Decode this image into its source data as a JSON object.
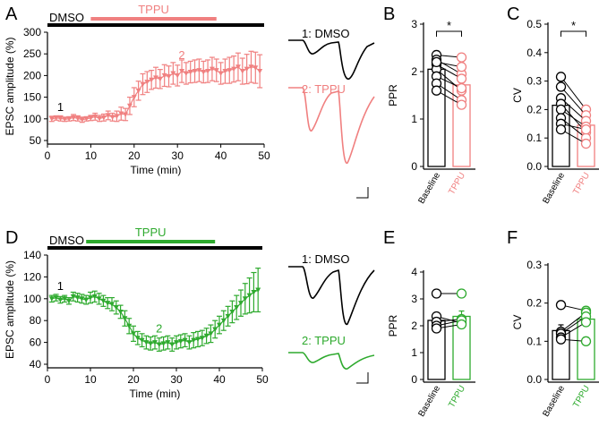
{
  "colors": {
    "tppu_a": "#F08080",
    "tppu_d": "#2EAA2E",
    "black": "#000000"
  },
  "chart_data": [
    {
      "panel": "A",
      "type": "line",
      "xlabel": "Time (min)",
      "ylabel": "EPSC amplitude (%)",
      "xlim": [
        0,
        50
      ],
      "ylim": [
        50,
        300
      ],
      "xticks": [
        "0",
        "10",
        "20",
        "30",
        "40",
        "50"
      ],
      "yticks": [
        "50",
        "100",
        "150",
        "200",
        "250",
        "300"
      ],
      "dmso_label": "DMSO",
      "drug_label": "TPPU",
      "dmso_bar": [
        0,
        50
      ],
      "drug_bar": [
        10,
        39
      ],
      "marker_1": "1",
      "marker_2": "2",
      "marker_1_at": [
        3,
        118
      ],
      "marker_2_at": [
        31,
        238
      ],
      "x": [
        1,
        2,
        3,
        4,
        5,
        6,
        7,
        8,
        9,
        10,
        11,
        12,
        13,
        14,
        15,
        16,
        17,
        18,
        19,
        20,
        21,
        22,
        23,
        24,
        25,
        26,
        27,
        28,
        29,
        30,
        31,
        32,
        33,
        34,
        35,
        36,
        37,
        38,
        39,
        40,
        41,
        42,
        43,
        44,
        45,
        46,
        47,
        48,
        49
      ],
      "y": [
        100,
        102,
        101,
        99,
        100,
        103,
        101,
        98,
        100,
        102,
        105,
        101,
        103,
        108,
        104,
        106,
        112,
        110,
        130,
        150,
        165,
        180,
        185,
        190,
        195,
        192,
        200,
        198,
        205,
        200,
        210,
        205,
        208,
        210,
        212,
        208,
        210,
        215,
        212,
        205,
        210,
        212,
        215,
        220,
        210,
        215,
        220,
        218,
        210
      ],
      "err": [
        6,
        5,
        6,
        5,
        5,
        7,
        6,
        6,
        5,
        6,
        8,
        7,
        8,
        10,
        9,
        12,
        15,
        14,
        20,
        22,
        22,
        24,
        24,
        22,
        24,
        22,
        25,
        24,
        25,
        24,
        26,
        25,
        25,
        26,
        26,
        25,
        26,
        27,
        26,
        25,
        28,
        30,
        30,
        32,
        30,
        34,
        36,
        36,
        38
      ]
    },
    {
      "panel": "D",
      "type": "line",
      "xlabel": "Time (min)",
      "ylabel": "EPSC amplitude (%)",
      "xlim": [
        0,
        50
      ],
      "ylim": [
        40,
        140
      ],
      "xticks": [
        "0",
        "10",
        "20",
        "30",
        "40",
        "50"
      ],
      "yticks": [
        "40",
        "60",
        "80",
        "100",
        "120",
        "140"
      ],
      "dmso_label": "DMSO",
      "drug_label": "TPPU",
      "dmso_bar": [
        0,
        50
      ],
      "drug_bar": [
        9,
        39
      ],
      "marker_1": "1",
      "marker_2": "2",
      "marker_1_at": [
        3,
        108
      ],
      "marker_2_at": [
        26,
        69
      ],
      "x": [
        1,
        2,
        3,
        4,
        5,
        6,
        7,
        8,
        9,
        10,
        11,
        12,
        13,
        14,
        15,
        16,
        17,
        18,
        19,
        20,
        21,
        22,
        23,
        24,
        25,
        26,
        27,
        28,
        29,
        30,
        31,
        32,
        33,
        34,
        35,
        36,
        37,
        38,
        39,
        40,
        41,
        42,
        43,
        44,
        45,
        46,
        47,
        48,
        49
      ],
      "y": [
        100,
        101,
        99,
        100,
        98,
        102,
        101,
        100,
        99,
        101,
        102,
        100,
        98,
        96,
        95,
        92,
        88,
        82,
        75,
        68,
        64,
        62,
        60,
        59,
        60,
        58,
        59,
        60,
        58,
        60,
        61,
        62,
        60,
        62,
        63,
        64,
        66,
        68,
        72,
        76,
        80,
        84,
        88,
        92,
        96,
        100,
        103,
        106,
        108
      ],
      "err": [
        3,
        3,
        3,
        3,
        3,
        4,
        4,
        4,
        4,
        5,
        5,
        5,
        5,
        5,
        6,
        6,
        6,
        7,
        7,
        7,
        6,
        6,
        6,
        6,
        6,
        6,
        6,
        6,
        6,
        6,
        6,
        6,
        6,
        7,
        7,
        7,
        7,
        8,
        8,
        8,
        9,
        9,
        10,
        11,
        12,
        14,
        16,
        18,
        20
      ]
    },
    {
      "panel": "B",
      "type": "bar",
      "ylabel": "PPR",
      "ylim": [
        0,
        3
      ],
      "yticks": [
        "0",
        "1",
        "2",
        "3"
      ],
      "categories": [
        "Baseline",
        "TPPU"
      ],
      "values": [
        2.05,
        1.72
      ],
      "sem": [
        0.1,
        0.12
      ],
      "pairs": [
        [
          2.35,
          2.3
        ],
        [
          2.25,
          1.95
        ],
        [
          2.15,
          1.85
        ],
        [
          2.05,
          1.6
        ],
        [
          1.9,
          1.65
        ],
        [
          1.75,
          1.4
        ],
        [
          1.6,
          1.3
        ],
        [
          2.2,
          2.1
        ]
      ],
      "significance": "*",
      "drug": "a"
    },
    {
      "panel": "C",
      "type": "bar",
      "ylabel": "CV",
      "ylim": [
        0,
        0.5
      ],
      "yticks": [
        "0.0",
        "0.1",
        "0.2",
        "0.3",
        "0.4",
        "0.5"
      ],
      "categories": [
        "Baseline",
        "TPPU"
      ],
      "values": [
        0.215,
        0.145
      ],
      "sem": [
        0.02,
        0.015
      ],
      "pairs": [
        [
          0.315,
          0.2
        ],
        [
          0.28,
          0.18
        ],
        [
          0.24,
          0.16
        ],
        [
          0.22,
          0.12
        ],
        [
          0.2,
          0.14
        ],
        [
          0.17,
          0.1
        ],
        [
          0.15,
          0.13
        ],
        [
          0.13,
          0.08
        ]
      ],
      "significance": "*",
      "drug": "a"
    },
    {
      "panel": "E",
      "type": "bar",
      "ylabel": "PPR",
      "ylim": [
        0,
        4
      ],
      "yticks": [
        "0",
        "1",
        "2",
        "3",
        "4"
      ],
      "categories": [
        "Baseline",
        "TPPU"
      ],
      "values": [
        2.2,
        2.35
      ],
      "sem": [
        0.25,
        0.2
      ],
      "pairs": [
        [
          3.2,
          3.2
        ],
        [
          2.35,
          2.1
        ],
        [
          2.15,
          2.25
        ],
        [
          2.0,
          2.2
        ],
        [
          1.9,
          2.05
        ]
      ],
      "significance": "",
      "drug": "d"
    },
    {
      "panel": "F",
      "type": "bar",
      "ylabel": "CV",
      "ylim": [
        0,
        0.3
      ],
      "yticks": [
        "0.0",
        "0.1",
        "0.2",
        "0.3"
      ],
      "categories": [
        "Baseline",
        "TPPU"
      ],
      "values": [
        0.128,
        0.158
      ],
      "sem": [
        0.015,
        0.015
      ],
      "pairs": [
        [
          0.195,
          0.18
        ],
        [
          0.125,
          0.175
        ],
        [
          0.12,
          0.165
        ],
        [
          0.11,
          0.15
        ],
        [
          0.105,
          0.1
        ]
      ],
      "significance": "",
      "drug": "d"
    }
  ],
  "traces": {
    "a": {
      "dmso_label": "1: DMSO",
      "drug_label": "2: TPPU"
    },
    "d": {
      "dmso_label": "1: DMSO",
      "drug_label": "2: TPPU"
    }
  },
  "panels": [
    "A",
    "B",
    "C",
    "D",
    "E",
    "F"
  ]
}
